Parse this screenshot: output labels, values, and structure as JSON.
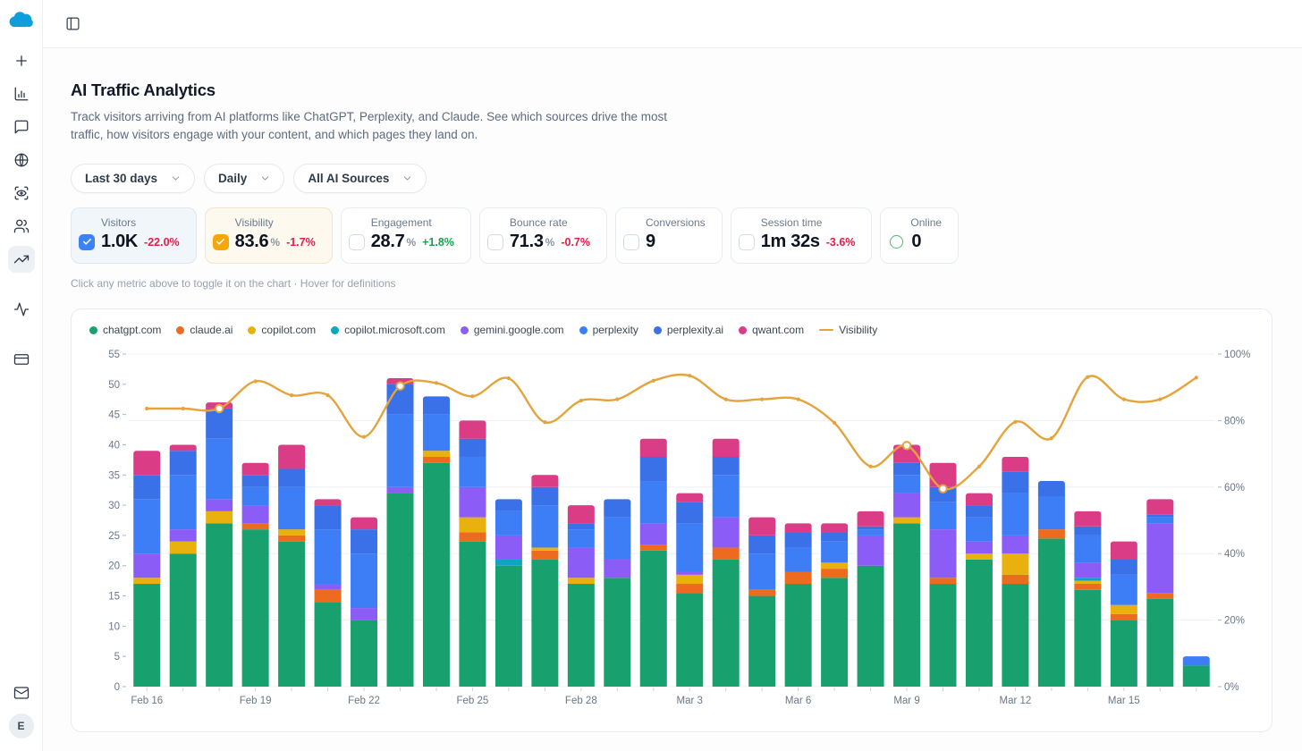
{
  "app": {
    "avatar_initial": "E"
  },
  "sidebar": {
    "icons": [
      "plus",
      "bar-chart",
      "messages",
      "globe",
      "scan-eye",
      "users",
      "trending-up",
      "activity",
      "credit-card"
    ],
    "active_icon": "trending-up",
    "bottom_icons": [
      "mail",
      "avatar"
    ]
  },
  "header": {
    "title": "AI Traffic Analytics",
    "description": "Track visitors arriving from AI platforms like ChatGPT, Perplexity, and Claude. See which sources drive the most traffic, how visitors engage with your content, and which pages they land on."
  },
  "filters": [
    {
      "label": "Last 30 days"
    },
    {
      "label": "Daily"
    },
    {
      "label": "All AI Sources"
    }
  ],
  "metrics": [
    {
      "label": "Visitors",
      "value": "1.0K",
      "suffix": "",
      "delta": "-22.0%",
      "direction": "down",
      "state": "checked-blue",
      "accent": "#3b82f6"
    },
    {
      "label": "Visibility",
      "value": "83.6",
      "suffix": "%",
      "delta": "-1.7%",
      "direction": "down",
      "state": "checked-amber",
      "accent": "#f6a609"
    },
    {
      "label": "Engagement",
      "value": "28.7",
      "suffix": "%",
      "delta": "+1.8%",
      "direction": "up",
      "state": "unchecked"
    },
    {
      "label": "Bounce rate",
      "value": "71.3",
      "suffix": "%",
      "delta": "-0.7%",
      "direction": "down",
      "state": "unchecked"
    },
    {
      "label": "Conversions",
      "value": "9",
      "suffix": "",
      "delta": "",
      "direction": "",
      "state": "unchecked"
    },
    {
      "label": "Session time",
      "value": "1m 32s",
      "suffix": "",
      "delta": "-3.6%",
      "direction": "down",
      "state": "unchecked"
    },
    {
      "label": "Online",
      "value": "0",
      "suffix": "",
      "delta": "",
      "direction": "",
      "state": "ring-green",
      "accent": "#57b576"
    }
  ],
  "hint": "Click any metric above to toggle it on the chart · Hover for definitions",
  "chart_data": {
    "type": "bar",
    "stacked": true,
    "legend_position": "top-left",
    "grid": "horizontal",
    "x_label_every": 3,
    "left_axis": {
      "min": 0,
      "max": 55,
      "tick_step": 5
    },
    "right_axis": {
      "min": 0,
      "max": 100,
      "tick_step": 20,
      "unit": "%"
    },
    "categories": [
      "Feb 16",
      "Feb 17",
      "Feb 18",
      "Feb 19",
      "Feb 20",
      "Feb 21",
      "Feb 22",
      "Feb 23",
      "Feb 24",
      "Feb 25",
      "Feb 26",
      "Feb 27",
      "Feb 28",
      "Mar 1",
      "Mar 2",
      "Mar 3",
      "Mar 4",
      "Mar 5",
      "Mar 6",
      "Mar 7",
      "Mar 8",
      "Mar 9",
      "Mar 10",
      "Mar 11",
      "Mar 12",
      "Mar 13",
      "Mar 14",
      "Mar 15",
      "Mar 16",
      "Mar 17"
    ],
    "series": [
      {
        "name": "chatgpt.com",
        "color": "#18a16f",
        "values": [
          17,
          22,
          27,
          26,
          24,
          14,
          11,
          32,
          37,
          24,
          20,
          21,
          17,
          18,
          22.5,
          15.5,
          21,
          15,
          17,
          18,
          20,
          27,
          17,
          21,
          17,
          24.5,
          16,
          11,
          14.5,
          3.5
        ]
      },
      {
        "name": "claude.ai",
        "color": "#ec6b1e",
        "values": [
          0,
          0,
          0,
          1,
          1,
          2,
          0,
          0,
          1,
          1.5,
          0,
          1.5,
          0,
          0,
          1,
          1.5,
          2,
          1,
          2,
          1.5,
          0,
          0,
          1,
          0,
          1.5,
          1.5,
          1,
          1,
          1,
          0
        ]
      },
      {
        "name": "copilot.com",
        "color": "#e9b10d",
        "values": [
          1,
          2,
          2,
          0,
          1,
          0,
          0,
          0,
          1,
          2.5,
          0,
          0.5,
          1,
          0,
          0,
          1.5,
          0,
          0,
          0,
          1,
          0,
          1,
          0,
          1,
          3.5,
          0,
          0.5,
          1.5,
          0,
          0
        ]
      },
      {
        "name": "copilot.microsoft.com",
        "color": "#0ca6bf",
        "values": [
          0,
          0,
          0,
          0,
          0,
          0,
          0,
          0,
          0,
          0,
          1,
          0,
          0,
          0,
          0,
          0,
          0,
          0,
          0,
          0,
          0,
          0,
          0,
          0,
          0,
          0,
          0.5,
          0,
          0,
          0
        ]
      },
      {
        "name": "gemini.google.com",
        "color": "#8b5cf6",
        "values": [
          4,
          2,
          2,
          3,
          0,
          1,
          2,
          1,
          0,
          5,
          4,
          0,
          5,
          3,
          3.5,
          0.5,
          5,
          0,
          0,
          0,
          5,
          4,
          8,
          2,
          3,
          0,
          2.5,
          0,
          11.5,
          0
        ]
      },
      {
        "name": "perplexity",
        "color": "#3d7ef7",
        "values": [
          9,
          9,
          10,
          3,
          7,
          9,
          9,
          12,
          6,
          5,
          4,
          7,
          3,
          7,
          7,
          8,
          7,
          6,
          4,
          3.5,
          1,
          3,
          4.5,
          4,
          7,
          5.5,
          4.5,
          5,
          1,
          1.5
        ]
      },
      {
        "name": "perplexity.ai",
        "color": "#3a71e8",
        "values": [
          4,
          4,
          5,
          2,
          3,
          4,
          4,
          5,
          3,
          3,
          2,
          3,
          1,
          3,
          4,
          3.5,
          3,
          3,
          2.5,
          1.5,
          0.5,
          2,
          2.5,
          2,
          3.5,
          2.5,
          1.5,
          2.5,
          0.5,
          0
        ]
      },
      {
        "name": "qwant.com",
        "color": "#db3c86",
        "values": [
          4,
          1,
          1,
          2,
          4,
          1,
          2,
          1,
          0,
          3,
          0,
          2,
          3,
          0,
          3,
          1.5,
          3,
          3,
          1.5,
          1.5,
          2.5,
          3,
          4,
          2,
          2.5,
          0,
          2.5,
          3,
          2.5,
          0
        ]
      }
    ],
    "overlay": {
      "type": "line",
      "name": "Visibility",
      "color": "#e5a33c",
      "axis": "right",
      "values": [
        83.6,
        83.6,
        83.6,
        91.8,
        87.6,
        87.6,
        75.1,
        90.4,
        91.3,
        87.3,
        92.7,
        79.5,
        86,
        86.4,
        92,
        93.5,
        86.4,
        86.4,
        86.4,
        79.3,
        66.2,
        72.5,
        59.5,
        66.2,
        79.6,
        74.7,
        93.1,
        86.4,
        86.4,
        92.9
      ],
      "markers": [
        2,
        7,
        21,
        22
      ]
    }
  }
}
